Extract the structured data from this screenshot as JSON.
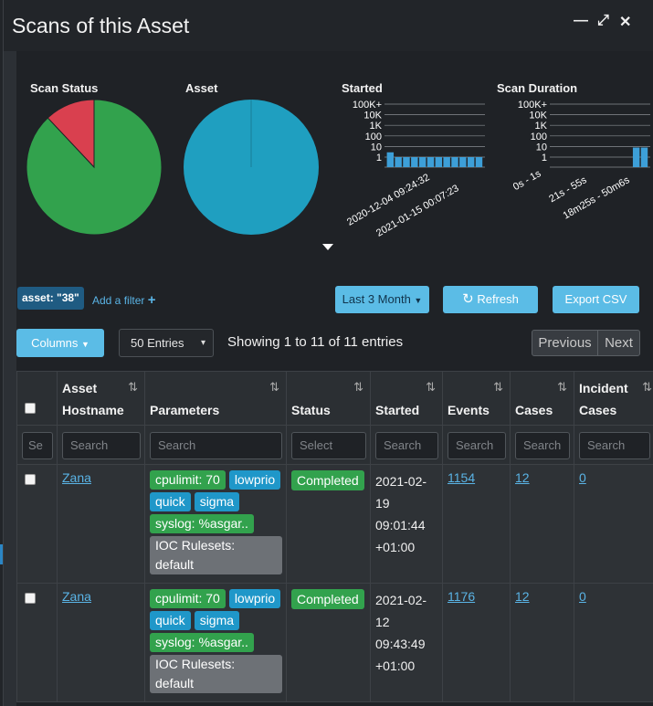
{
  "window": {
    "title": "Scans of this Asset",
    "controls": [
      "minimize",
      "maximize",
      "close"
    ]
  },
  "charts": {
    "labels": {
      "scan_status": "Scan Status",
      "asset": "Asset",
      "started": "Started",
      "scan_duration": "Scan Duration"
    }
  },
  "chart_data": [
    {
      "type": "pie",
      "title": "Scan Status",
      "slices": [
        {
          "label": "",
          "value": 0.88,
          "color": "#32a24d"
        },
        {
          "label": "",
          "value": 0.12,
          "color": "#d9404f"
        }
      ]
    },
    {
      "type": "pie",
      "title": "Asset",
      "slices": [
        {
          "label": "",
          "value": 1.0,
          "color": "#1f9fc0"
        }
      ]
    },
    {
      "type": "bar",
      "title": "Started",
      "yscale": "log",
      "yticks": [
        "1",
        "10",
        "100",
        "1K",
        "10K",
        "100K+"
      ],
      "xticks": [
        "2020-12-04 09:24:32",
        "2021-01-15 00:07:23"
      ],
      "values": [
        2,
        1,
        1,
        1,
        1,
        1,
        1,
        1,
        1,
        1,
        1,
        1
      ],
      "color": "#3d9fd8"
    },
    {
      "type": "bar",
      "title": "Scan Duration",
      "yscale": "log",
      "yticks": [
        "1",
        "10",
        "100",
        "1K",
        "10K",
        "100K+"
      ],
      "xticks": [
        "0s - 1s",
        "21s - 55s",
        "18m25s - 50m6s"
      ],
      "values": [
        0,
        0,
        0,
        0,
        0,
        0,
        0,
        0,
        0,
        0,
        4,
        4
      ],
      "color": "#3d9fd8"
    }
  ],
  "filters": {
    "chip": "asset: \"38\"",
    "add_filter": "Add a filter"
  },
  "toolbar": {
    "time_range": "Last 3 Month",
    "refresh": "Refresh",
    "export": "Export CSV",
    "columns": "Columns",
    "entries_select": "50 Entries",
    "info": "Showing 1 to 11 of 11 entries",
    "previous": "Previous",
    "next": "Next"
  },
  "table": {
    "headers": {
      "asset_l1": "Asset",
      "asset_l2": "Hostname",
      "parameters": "Parameters",
      "status": "Status",
      "started": "Started",
      "events": "Events",
      "cases": "Cases",
      "incident_l1": "Incident",
      "incident_l2": "Cases"
    },
    "filter_placeholders": {
      "select_col": "Se",
      "asset": "Search",
      "parameters": "Search",
      "status": "Select",
      "started": "Search",
      "events": "Search",
      "cases": "Search",
      "incident": "Search"
    },
    "rows": [
      {
        "asset": "Zana",
        "params": {
          "cpulimit": "cpulimit: 70",
          "lowprio": "lowprio",
          "quick": "quick",
          "sigma": "sigma",
          "syslog": "syslog: %asgar..",
          "ioc": "IOC Rulesets: default"
        },
        "status": "Completed",
        "started_l1": "2021-02-",
        "started_l2": "19",
        "started_l3": "09:01:44",
        "started_l4": "+01:00",
        "events": "1154",
        "cases": "12",
        "incident": "0"
      },
      {
        "asset": "Zana",
        "params": {
          "cpulimit": "cpulimit: 70",
          "lowprio": "lowprio",
          "quick": "quick",
          "sigma": "sigma",
          "syslog": "syslog: %asgar..",
          "ioc": "IOC Rulesets: default"
        },
        "status": "Completed",
        "started_l1": "2021-02-",
        "started_l2": "12",
        "started_l3": "09:43:49",
        "started_l4": "+01:00",
        "events": "1176",
        "cases": "12",
        "incident": "0"
      }
    ]
  }
}
